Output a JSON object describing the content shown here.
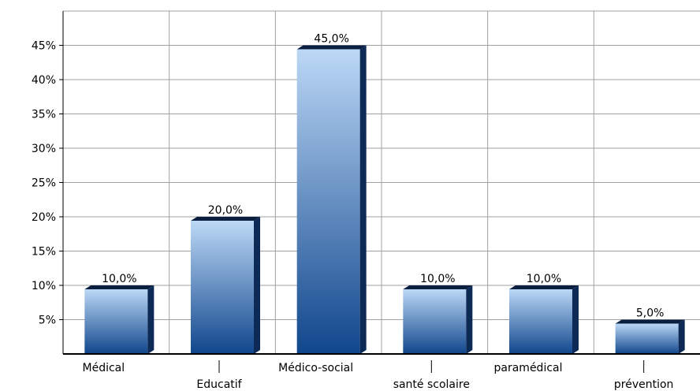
{
  "chart_data": {
    "type": "bar",
    "categories": [
      "Médical",
      "Educatif",
      "Médico-social",
      "santé scolaire",
      "paramédical",
      "prévention"
    ],
    "values": [
      10.0,
      20.0,
      45.0,
      10.0,
      10.0,
      5.0
    ],
    "data_labels": [
      "10,0%",
      "20,0%",
      "45,0%",
      "10,0%",
      "10,0%",
      "5,0%"
    ],
    "yticks": [
      5,
      10,
      15,
      20,
      25,
      30,
      35,
      40,
      45
    ],
    "ytick_labels": [
      "5%",
      "10%",
      "15%",
      "20%",
      "25%",
      "30%",
      "35%",
      "40%",
      "45%"
    ],
    "ylim": [
      0,
      50
    ],
    "grid": true,
    "legend": "none",
    "title": "",
    "xlabel": "",
    "ylabel": "",
    "colors": {
      "bar_top": "#bcd8f6",
      "bar_bottom": "#10468c",
      "bar_side": "#0c2a55",
      "bar_cap": "#0a1f40",
      "grid": "#a0a0a0",
      "axis": "#000000"
    }
  }
}
